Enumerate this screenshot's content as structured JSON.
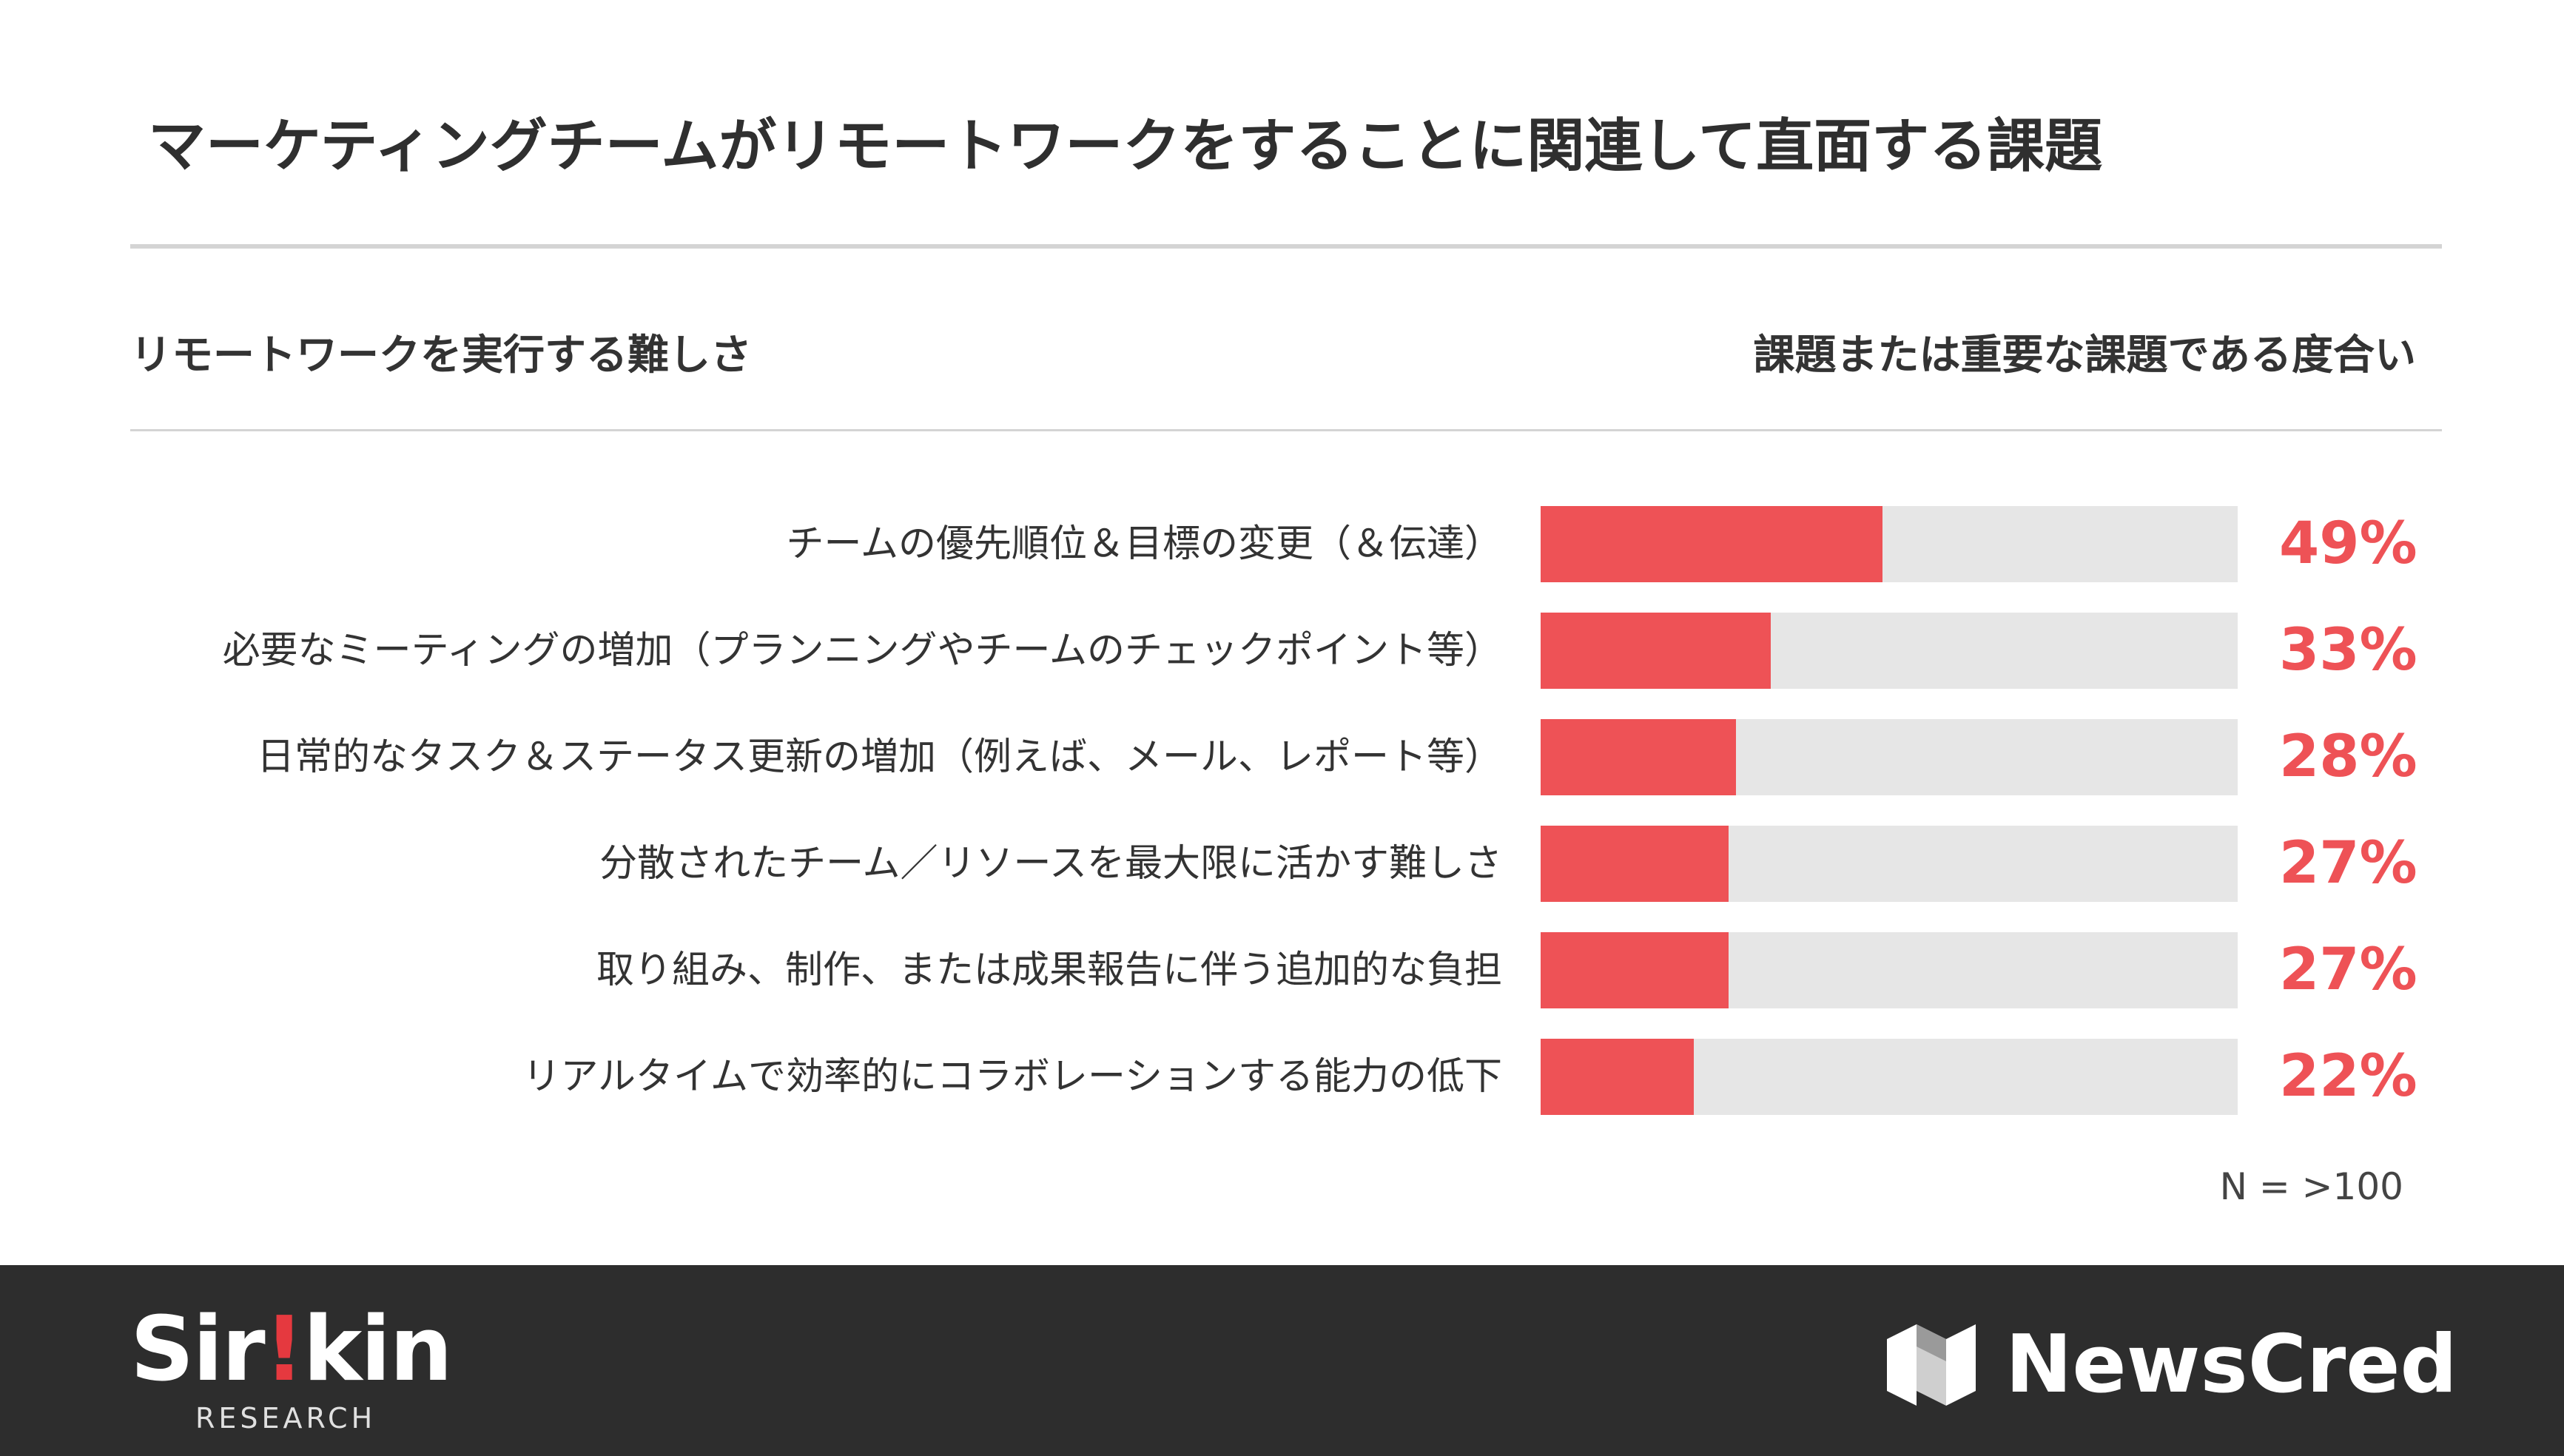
{
  "title": "マーケティングチームがリモートワークをすることに関連して直面する課題",
  "header": {
    "left": "リモートワークを実行する難しさ",
    "right": "課題または重要な課題である度合い"
  },
  "colors": {
    "accent": "#ee5256",
    "track": "#e6e6e6",
    "footer": "#2d2d2d"
  },
  "chart_data": {
    "type": "bar",
    "orientation": "horizontal",
    "categories": [
      "チームの優先順位＆目標の変更（＆伝達）",
      "必要なミーティングの増加（プランニングやチームのチェックポイント等）",
      "日常的なタスク＆ステータス更新の増加（例えば、メール、レポート等）",
      "分散されたチーム／リソースを最大限に活かす難しさ",
      "取り組み、制作、または成果報告に伴う追加的な負担",
      "リアルタイムで効率的にコラボレーションする能力の低下"
    ],
    "values": [
      49,
      33,
      28,
      27,
      27,
      22
    ],
    "labels": [
      "49%",
      "33%",
      "28%",
      "27%",
      "27%",
      "22%"
    ],
    "xlim": [
      0,
      100
    ],
    "grid": false,
    "legend": "none"
  },
  "note": "N = >100",
  "footer": {
    "sirkin_logo": {
      "text_pre": "Sir",
      "text_bang": "!",
      "text_post": "kin",
      "subtitle": "RESEARCH"
    },
    "newscred_logo": {
      "text": "NewsCred",
      "icon": "newscred-logo-icon"
    }
  }
}
